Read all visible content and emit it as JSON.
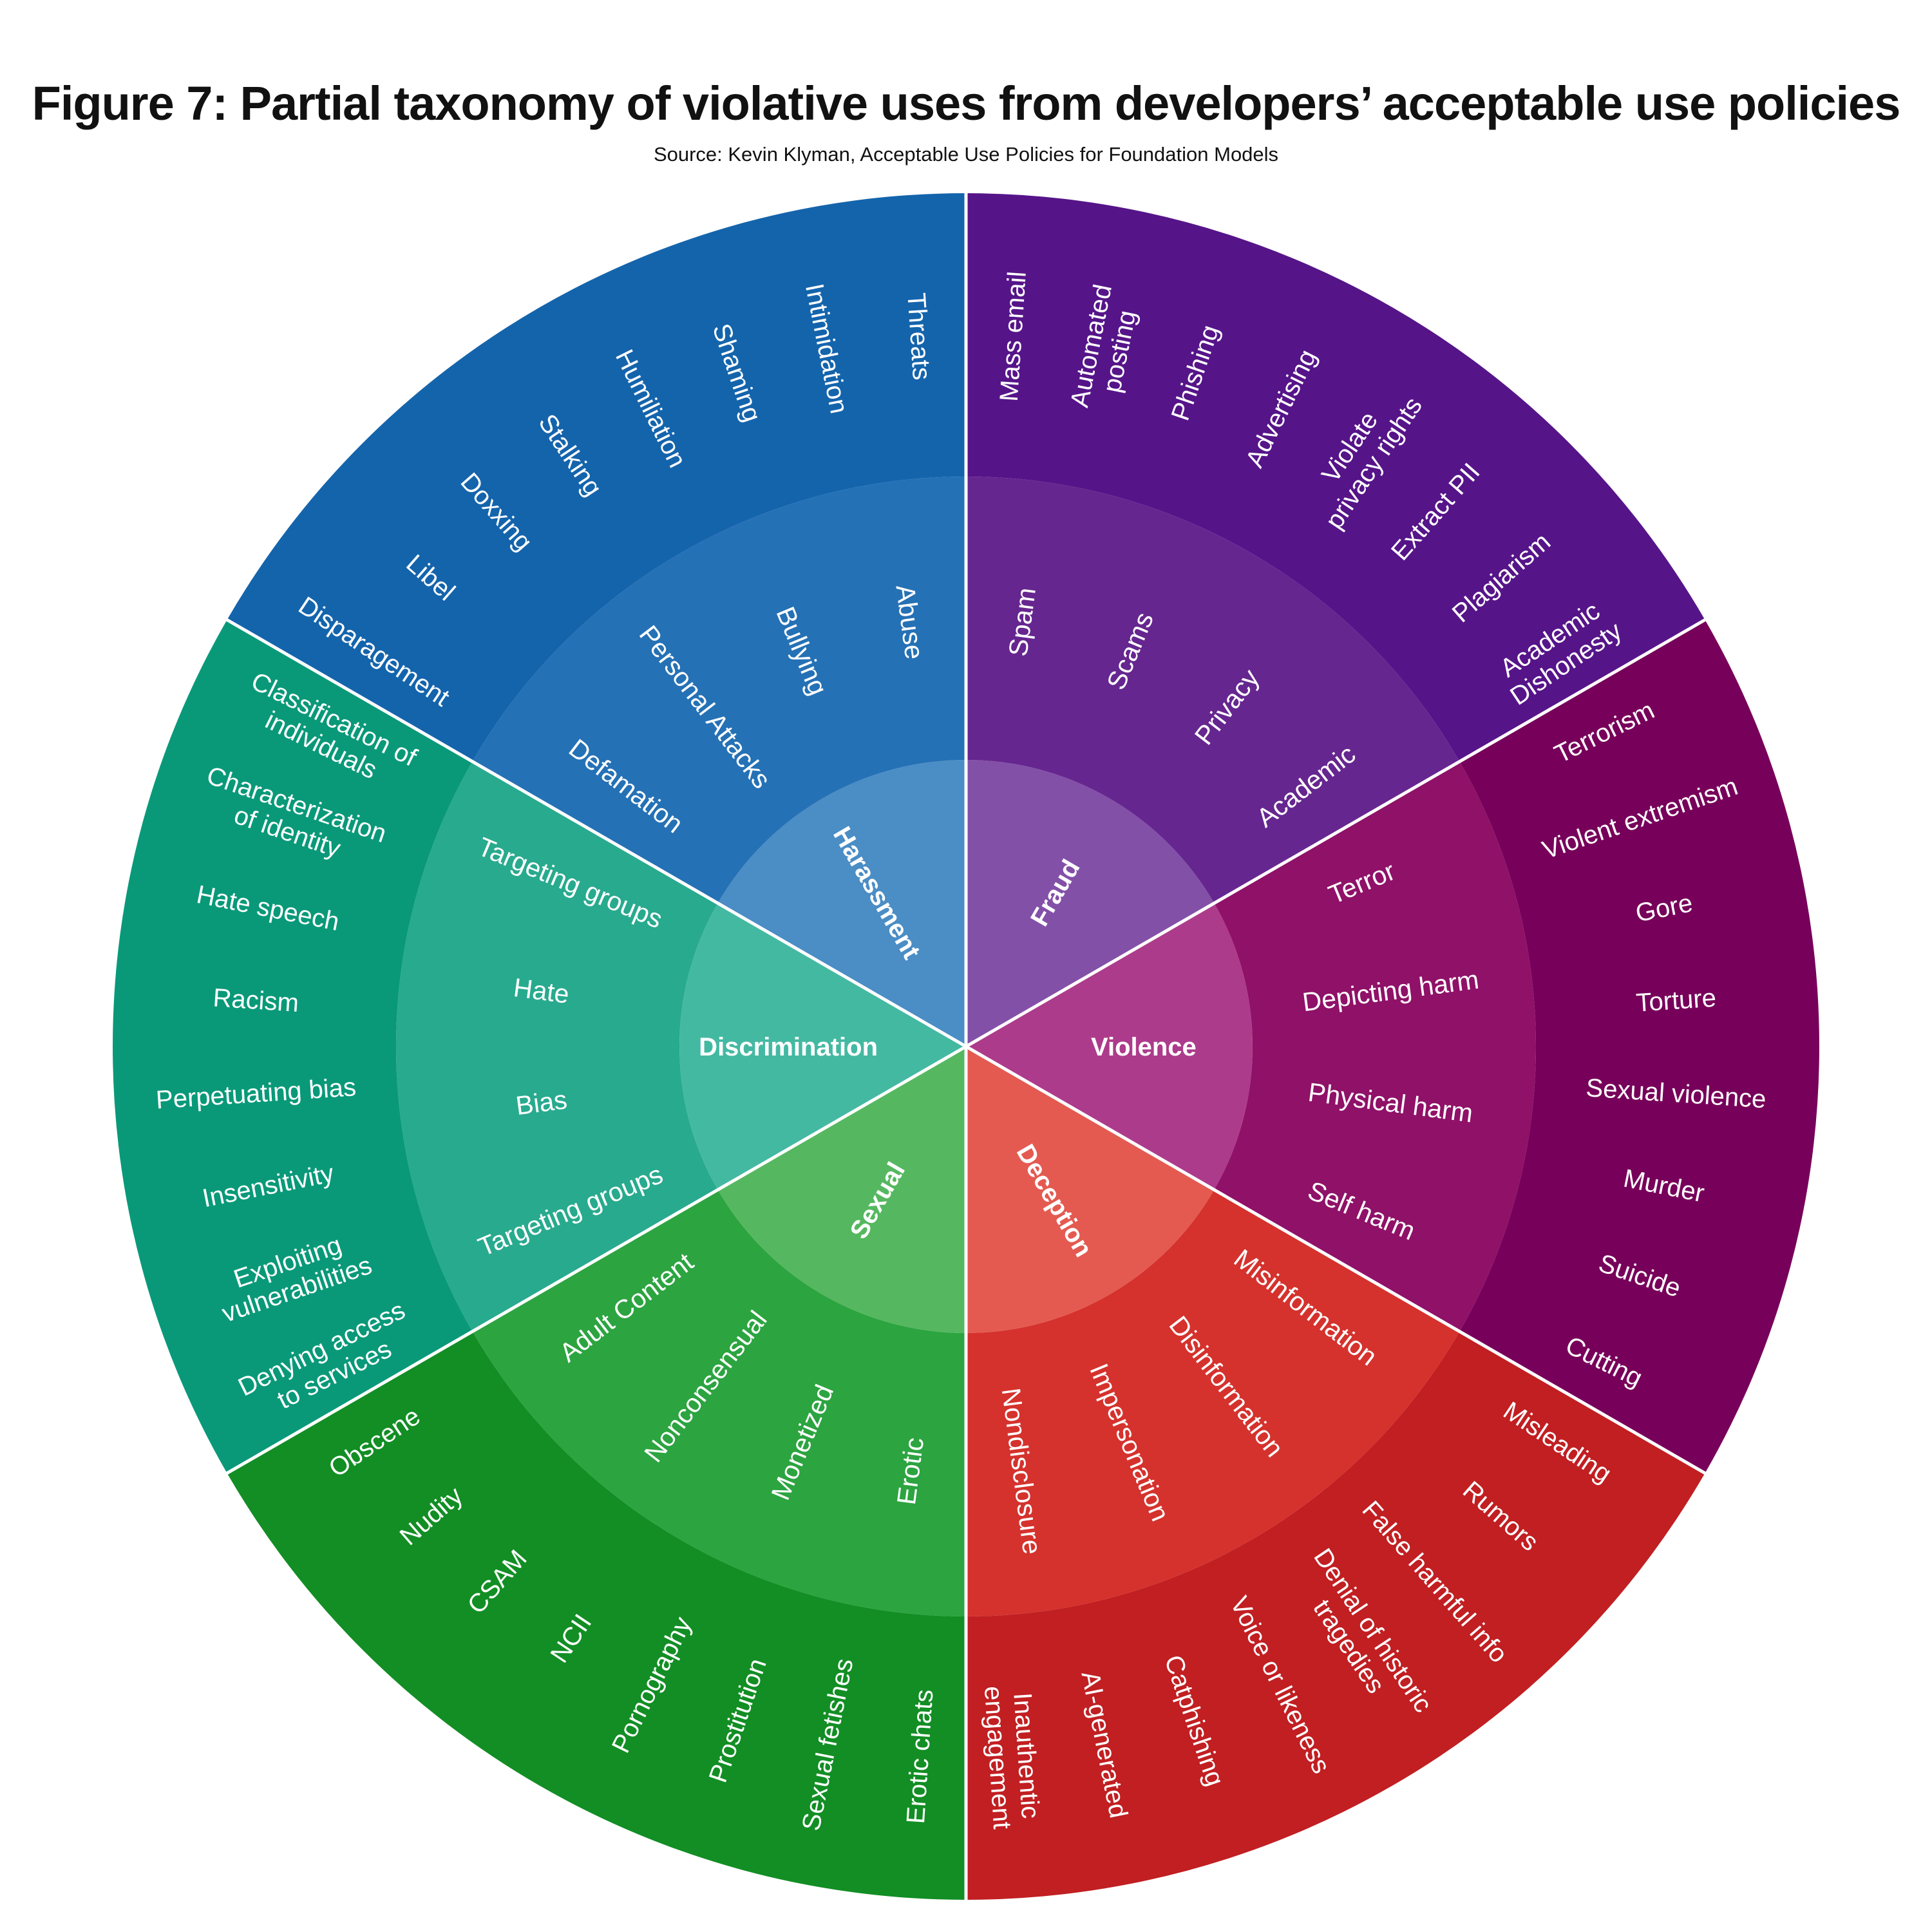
{
  "title": "Figure 7: Partial taxonomy of violative uses from developers’ acceptable use policies",
  "subtitle": "Source: Kevin Klyman, Acceptable Use Policies for Foundation Models",
  "categories": [
    {
      "name": "Fraud",
      "colors": {
        "inner": "#8350a8",
        "middle": "#66268f",
        "outer": "#561489"
      },
      "subcategories": [
        {
          "name": "Spam",
          "items": [
            "Mass email",
            "Automated\nposting"
          ]
        },
        {
          "name": "Scams",
          "items": [
            "Phishing",
            "Advertising"
          ]
        },
        {
          "name": "Privacy",
          "items": [
            "Violate\nprivacy rights",
            "Extract PII"
          ]
        },
        {
          "name": "Academic",
          "items": [
            "Plagiarism",
            "Academic\nDishonesty"
          ]
        }
      ]
    },
    {
      "name": "Violence",
      "colors": {
        "inner": "#ad3b8b",
        "middle": "#8f1168",
        "outer": "#77005a"
      },
      "subcategories": [
        {
          "name": "Terror",
          "items": [
            "Terrorism",
            "Violent extremism"
          ]
        },
        {
          "name": "Depicting harm",
          "items": [
            "Gore",
            "Torture"
          ]
        },
        {
          "name": "Physical harm",
          "items": [
            "Sexual violence",
            "Murder"
          ]
        },
        {
          "name": "Self harm",
          "items": [
            "Suicide",
            "Cutting"
          ]
        }
      ]
    },
    {
      "name": "Deception",
      "colors": {
        "inner": "#e45a51",
        "middle": "#d5322d",
        "outer": "#c11f22"
      },
      "subcategories": [
        {
          "name": "Misinformation",
          "items": [
            "Misleading",
            "Rumors"
          ]
        },
        {
          "name": "Disinformation",
          "items": [
            "False harmful info",
            "Denial of historic\ntragedies"
          ]
        },
        {
          "name": "Impersonation",
          "items": [
            "Voice or likeness",
            "Catphishing"
          ]
        },
        {
          "name": "Nondisclosure",
          "items": [
            "AI-generated",
            "Inauthentic\nengagement"
          ]
        }
      ]
    },
    {
      "name": "Sexual",
      "colors": {
        "inner": "#55b860",
        "middle": "#2ca440",
        "outer": "#128e24"
      },
      "subcategories": [
        {
          "name": "Erotic",
          "items": [
            "Erotic chats",
            "Sexual fetishes"
          ]
        },
        {
          "name": "Monetized",
          "items": [
            "Prostitution",
            "Pornography"
          ]
        },
        {
          "name": "Nonconsensual",
          "items": [
            "NCII",
            "CSAM"
          ]
        },
        {
          "name": "Adult Content",
          "items": [
            "Nudity",
            "Obscene"
          ]
        }
      ]
    },
    {
      "name": "Discrimination",
      "colors": {
        "inner": "#44b9a2",
        "middle": "#28aa8e",
        "outer": "#099979"
      },
      "subcategories": [
        {
          "name": "Targeting groups",
          "items": [
            "Denying access\nto services",
            "Exploiting\nvulnerabilities"
          ]
        },
        {
          "name": "Bias",
          "items": [
            "Insensitivity",
            "Perpetuating bias"
          ]
        },
        {
          "name": "Hate",
          "items": [
            "Racism",
            "Hate speech"
          ]
        },
        {
          "name": "Targeting groups",
          "items": [
            "Characterization\nof identity",
            "Classification of\nindividuals"
          ]
        }
      ]
    },
    {
      "name": "Harassment",
      "colors": {
        "inner": "#4b8dc5",
        "middle": "#2571b5",
        "outer": "#1464ac"
      },
      "subcategories": [
        {
          "name": "Defamation",
          "items": [
            "Disparagement",
            "Libel"
          ]
        },
        {
          "name": "Personal Attacks",
          "items": [
            "Doxxing",
            "Stalking"
          ]
        },
        {
          "name": "Bullying",
          "items": [
            "Humiliation",
            "Shaming"
          ]
        },
        {
          "name": "Abuse",
          "items": [
            "Intimidation",
            "Threats"
          ]
        }
      ]
    }
  ],
  "separator_color": "#ffffff"
}
